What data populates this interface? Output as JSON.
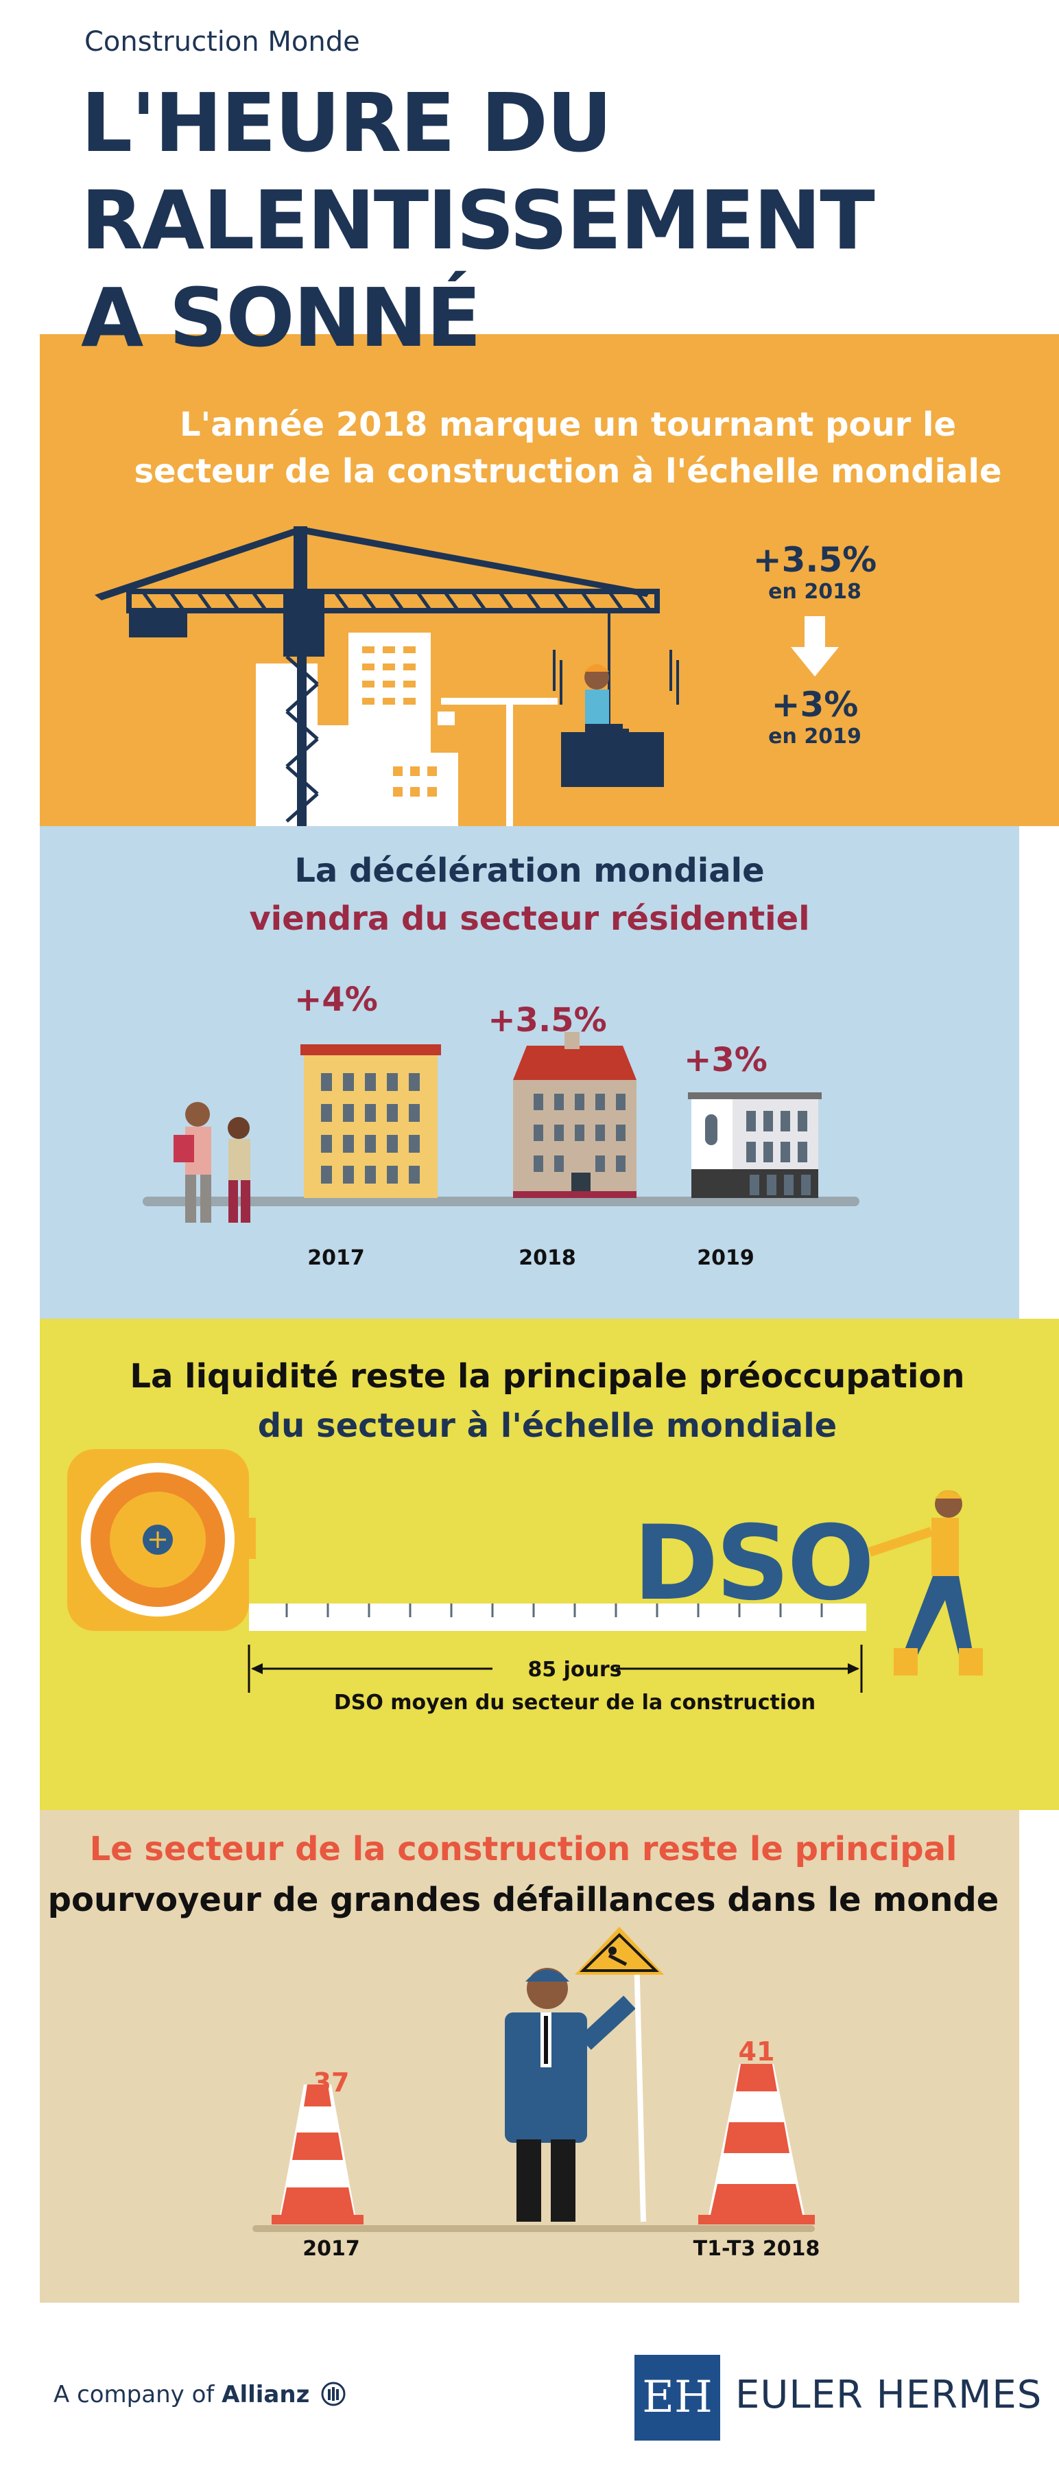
{
  "header": {
    "brand": "Construction Monde",
    "title_line1": "L'HEURE DU",
    "title_line2": "RALENTISSEMENT",
    "title_line3": "A SONNÉ"
  },
  "section1": {
    "title_line1": "L'année 2018 marque un tournant pour le",
    "title_line2": "secteur de la construction à l'échelle mondiale",
    "value_2018": "+3.5%",
    "label_2018": "en 2018",
    "value_2019": "+3%",
    "label_2019": "en 2019"
  },
  "section2": {
    "title_line1": "La décélération mondiale",
    "title_line2": "viendra du secteur résidentiel",
    "items": [
      {
        "value": "+4%",
        "year": "2017"
      },
      {
        "value": "+3.5%",
        "year": "2018"
      },
      {
        "value": "+3%",
        "year": "2019"
      }
    ]
  },
  "section3": {
    "title_line1": "La liquidité reste la principale préoccupation",
    "title_line2": "du secteur à l'échelle mondiale",
    "dso_word": "DSO",
    "days": "85 jours",
    "caption": "DSO moyen du secteur de la construction"
  },
  "section4": {
    "title_line1": "Le secteur de la construction reste le principal",
    "title_line2": "pourvoyeur de grandes défaillances dans le monde",
    "items": [
      {
        "value": "37",
        "label": "2017"
      },
      {
        "value": "41",
        "label": "T1-T3 2018"
      }
    ]
  },
  "footer": {
    "allianz_prefix": "A company of ",
    "allianz_name": "Allianz",
    "eh_logo_text": "EH",
    "eh_name": "EULER HERMES"
  },
  "colors": {
    "navy": "#1e3454",
    "orange_panel": "#f2ac42",
    "blue_panel": "#bed9ea",
    "yellow_panel": "#e9de4b",
    "beige_panel": "#e7d6b2",
    "maroon": "#9c2a44",
    "coral": "#e8573f"
  }
}
